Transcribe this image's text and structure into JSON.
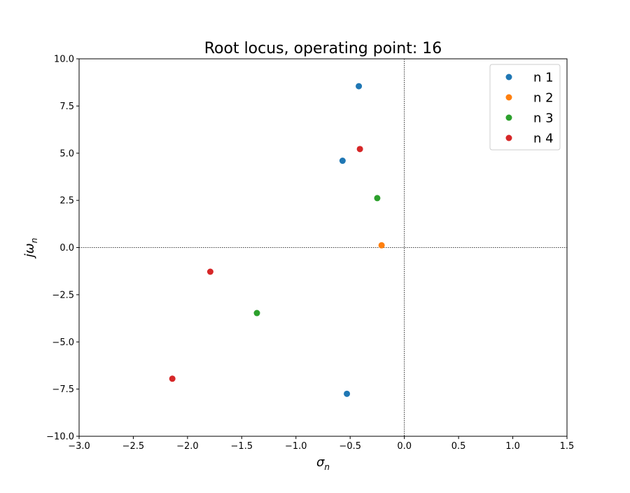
{
  "chart_data": {
    "type": "scatter",
    "title": "Root locus, operating point: 16",
    "xlabel": "σ",
    "xlabel_sub": "n",
    "ylabel": "jω",
    "ylabel_sub": "n",
    "xlim": [
      -3.0,
      1.5
    ],
    "ylim": [
      -10.0,
      10.0
    ],
    "xticks": [
      -3.0,
      -2.5,
      -2.0,
      -1.5,
      -1.0,
      -0.5,
      0.0,
      0.5,
      1.0,
      1.5
    ],
    "xtick_labels": [
      "−3.0",
      "−2.5",
      "−2.0",
      "−1.5",
      "−1.0",
      "−0.5",
      "0.0",
      "0.5",
      "1.0",
      "1.5"
    ],
    "yticks": [
      10.0,
      7.5,
      5.0,
      2.5,
      0.0,
      -2.5,
      -5.0,
      -7.5,
      -10.0
    ],
    "ytick_labels": [
      "10.0",
      "7.5",
      "5.0",
      "2.5",
      "0.0",
      "−2.5",
      "−5.0",
      "−7.5",
      "−10.0"
    ],
    "grid": false,
    "reference_lines": {
      "x": 0.0,
      "y": 0.0,
      "style": "dotted"
    },
    "legend_position": "top-right",
    "series": [
      {
        "name": "n 1",
        "color": "#1f77b4",
        "points": [
          {
            "x": -0.42,
            "y": 8.55
          },
          {
            "x": -0.57,
            "y": 4.6
          },
          {
            "x": -0.53,
            "y": -7.75
          }
        ]
      },
      {
        "name": "n 2",
        "color": "#ff7f0e",
        "points": [
          {
            "x": -0.21,
            "y": 0.12
          }
        ]
      },
      {
        "name": "n 3",
        "color": "#2ca02c",
        "points": [
          {
            "x": -0.25,
            "y": 2.62
          },
          {
            "x": -1.36,
            "y": -3.47
          }
        ]
      },
      {
        "name": "n 4",
        "color": "#d62728",
        "points": [
          {
            "x": -0.41,
            "y": 5.22
          },
          {
            "x": -1.79,
            "y": -1.28
          },
          {
            "x": -2.14,
            "y": -6.95
          }
        ]
      }
    ]
  }
}
